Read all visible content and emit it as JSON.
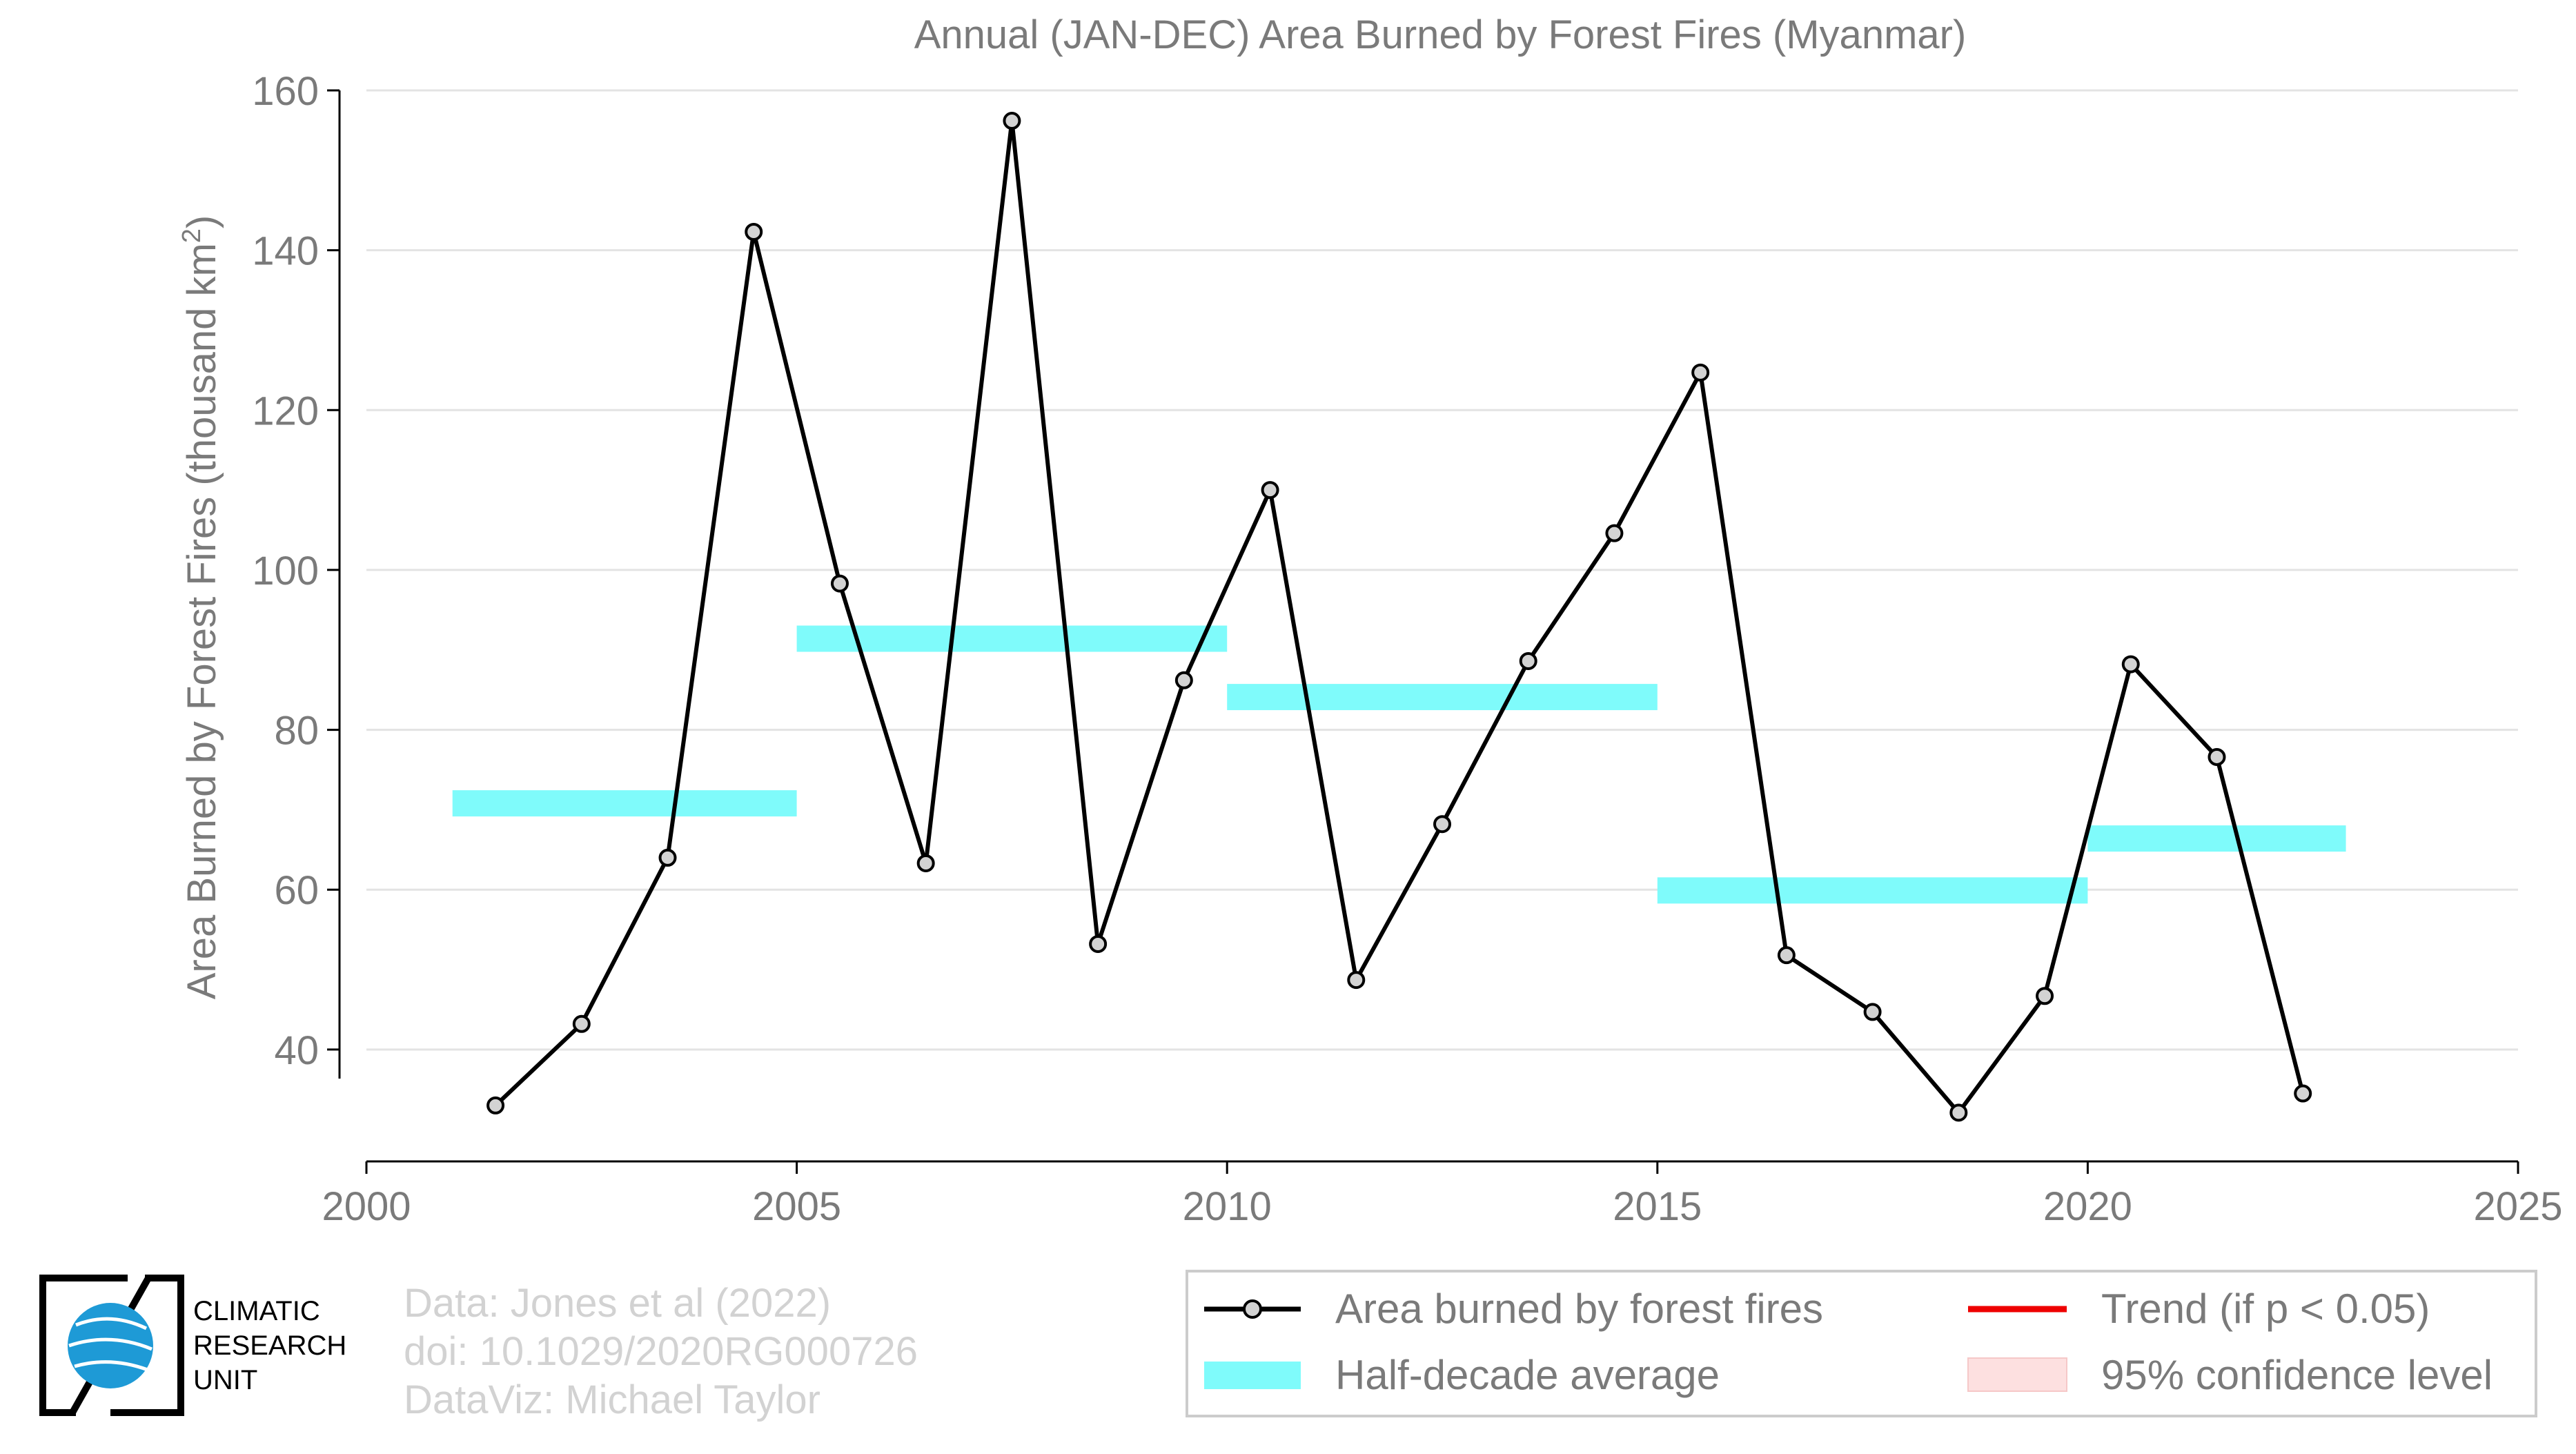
{
  "chart_data": {
    "type": "line",
    "title": "Annual (JAN-DEC) Area Burned by Forest Fires (Myanmar)",
    "ylabel": "Area Burned by Forest Fires (thousand km",
    "ylabel_superscript": "2",
    "ylabel_close": ")",
    "xlabel": "",
    "xlim": [
      2000,
      2025
    ],
    "ylim": [
      26,
      160
    ],
    "x_ticks": [
      2000,
      2005,
      2010,
      2015,
      2020,
      2025
    ],
    "y_ticks": [
      40,
      60,
      80,
      100,
      120,
      140,
      160
    ],
    "grid": "horizontal",
    "series": [
      {
        "name": "Area burned by forest fires",
        "color": "#000000",
        "marker_fill": "#d3d3d3",
        "x": [
          2001.5,
          2002.5,
          2003.5,
          2004.5,
          2005.5,
          2006.5,
          2007.5,
          2008.5,
          2009.5,
          2010.5,
          2011.5,
          2012.5,
          2013.5,
          2014.5,
          2015.5,
          2016.5,
          2017.5,
          2018.5,
          2019.5,
          2020.5,
          2021.5,
          2022.5
        ],
        "y": [
          33.0,
          43.2,
          64.0,
          142.3,
          98.3,
          63.3,
          156.2,
          53.2,
          86.2,
          110.0,
          48.7,
          68.2,
          88.6,
          104.6,
          124.7,
          51.8,
          44.7,
          32.1,
          46.7,
          88.2,
          76.6,
          34.5
        ]
      }
    ],
    "half_decade_averages": {
      "name": "Half-decade average",
      "color": "#7ffbfb",
      "segments": [
        {
          "x0": 2001,
          "x1": 2005,
          "y": 70.8
        },
        {
          "x0": 2005,
          "x1": 2010,
          "y": 91.4
        },
        {
          "x0": 2010,
          "x1": 2015,
          "y": 84.1
        },
        {
          "x0": 2015,
          "x1": 2020,
          "y": 59.9
        },
        {
          "x0": 2020,
          "x1": 2023,
          "y": 66.4
        }
      ]
    },
    "legend": {
      "placement": "bottom-right",
      "entries": [
        {
          "label": "Area burned by forest fires",
          "kind": "line-marker",
          "color": "#000000"
        },
        {
          "label": "Trend (if p < 0.05)",
          "kind": "line",
          "color": "#ee0000"
        },
        {
          "label": "Half-decade average",
          "kind": "band",
          "color": "#7ffbfb"
        },
        {
          "label": "95% confidence level",
          "kind": "patch",
          "color": "#fde0e0"
        }
      ]
    }
  },
  "credits": {
    "lines": [
      "Data: Jones et al (2022)",
      "doi: 10.1029/2020RG000726",
      "DataViz: Michael Taylor"
    ]
  },
  "logo": {
    "lines": [
      "CLIMATIC",
      "RESEARCH",
      "UNIT"
    ]
  },
  "colors": {
    "axis_text": "#7a7a7a",
    "grid": "#e3e3e3",
    "credits_text": "#d2d2d2"
  }
}
